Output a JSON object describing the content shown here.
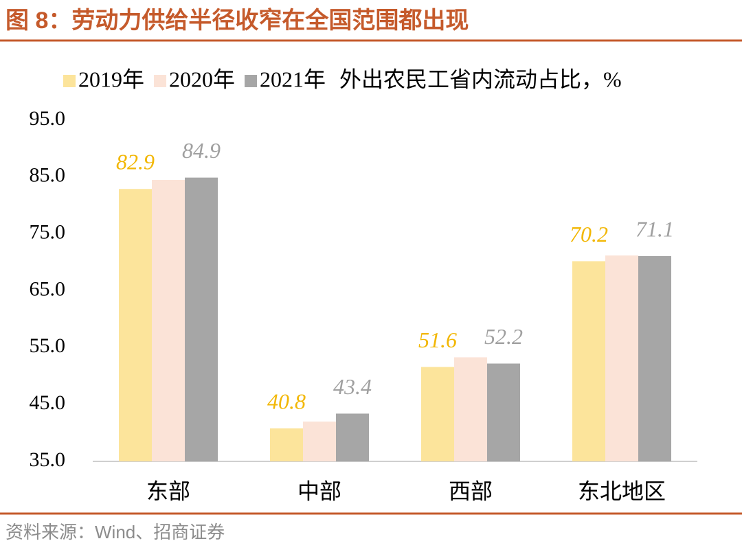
{
  "header": {
    "title": "图 8：劳动力供给半径收窄在全国范围都出现"
  },
  "chart_data": {
    "type": "bar",
    "title": "外出农民工省内流动占比，%",
    "categories": [
      "东部",
      "中部",
      "西部",
      "东北地区"
    ],
    "series": [
      {
        "name": "2019年",
        "color": "#fce49b",
        "label_color": "#f2b705",
        "show_labels": true,
        "values": [
          82.9,
          40.8,
          51.6,
          70.2
        ]
      },
      {
        "name": "2020年",
        "color": "#fbe3d7",
        "label_color": "#f2b705",
        "show_labels": false,
        "values": [
          84.5,
          42.0,
          53.3,
          71.2
        ]
      },
      {
        "name": "2021年",
        "color": "#a6a6a6",
        "label_color": "#a0a0a0",
        "show_labels": true,
        "values": [
          84.9,
          43.4,
          52.2,
          71.1
        ]
      }
    ],
    "ylim": [
      35,
      95
    ],
    "yticks": [
      {
        "value": 35,
        "label": "35.0"
      },
      {
        "value": 45,
        "label": "45.0"
      },
      {
        "value": 55,
        "label": "55.0"
      },
      {
        "value": 65,
        "label": "65.0"
      },
      {
        "value": 75,
        "label": "75.0"
      },
      {
        "value": 85,
        "label": "85.0"
      },
      {
        "value": 95,
        "label": "95.0"
      }
    ],
    "grid": false
  },
  "footer": {
    "source": "资料来源：Wind、招商证券"
  }
}
